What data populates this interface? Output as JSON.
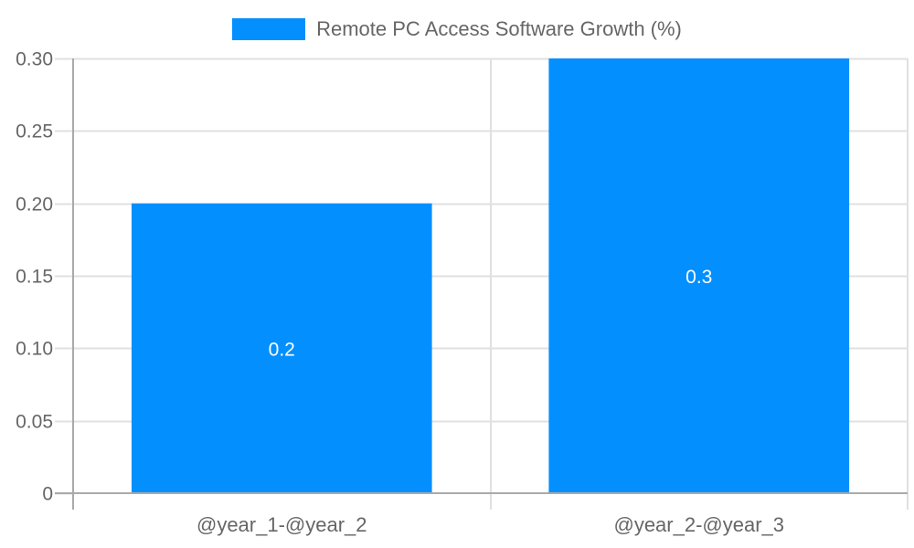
{
  "legend": {
    "label": "Remote PC Access Software Growth (%)",
    "color": "#038FFE"
  },
  "colors": {
    "bar": "#038FFE",
    "grid": "#E0E0E0",
    "axis": "#AAAAAA",
    "text": "#666666"
  },
  "chart_data": {
    "type": "bar",
    "title": "",
    "categories": [
      "@year_1-@year_2",
      "@year_2-@year_3"
    ],
    "series": [
      {
        "name": "Remote PC Access Software Growth (%)",
        "values": [
          0.2,
          0.3
        ],
        "color": "#038FFE"
      }
    ],
    "data_labels": [
      "0.2",
      "0.3"
    ],
    "xlabel": "",
    "ylabel": "",
    "ylim": [
      0,
      0.3
    ],
    "yticks": [
      "0",
      "0.05",
      "0.10",
      "0.15",
      "0.20",
      "0.25",
      "0.30"
    ],
    "grid": true,
    "legend_position": "top"
  }
}
